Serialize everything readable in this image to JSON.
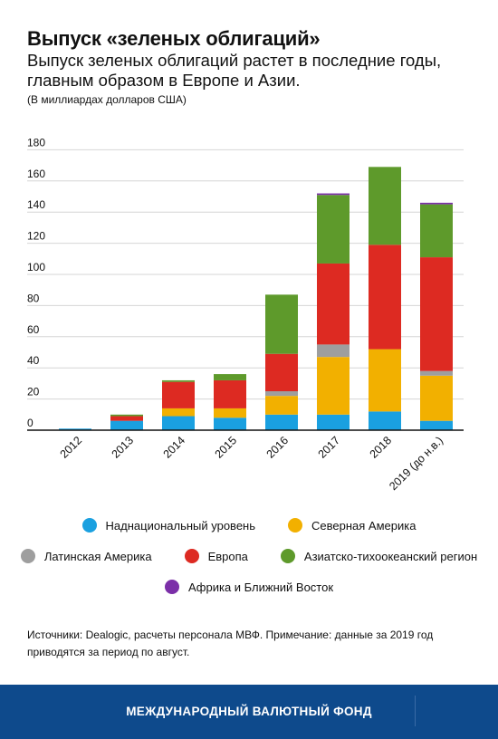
{
  "header": {
    "title": "Выпуск «зеленых облигаций»",
    "subtitle": "Выпуск зеленых облигаций растет в последние годы, главным образом в Европе и Азии.",
    "units": "(В миллиардах долларов США)"
  },
  "chart_data": {
    "type": "bar",
    "stacked": true,
    "title": "Выпуск «зеленых облигаций»",
    "categories": [
      "2012",
      "2013",
      "2014",
      "2015",
      "2016",
      "2017",
      "2018",
      "2019 (до н.в.)"
    ],
    "series": [
      {
        "name": "Наднациональный уровень",
        "color": "#1aa0e0",
        "values": [
          1,
          6,
          9,
          8,
          10,
          10,
          12,
          6
        ]
      },
      {
        "name": "Северная Америка",
        "color": "#f2b000",
        "values": [
          0,
          0,
          5,
          6,
          12,
          37,
          40,
          29
        ]
      },
      {
        "name": "Латинская Америка",
        "color": "#9e9e9e",
        "values": [
          0,
          0,
          0,
          0,
          3,
          8,
          0,
          3
        ]
      },
      {
        "name": "Европа",
        "color": "#dd2a22",
        "values": [
          0,
          3,
          17,
          18,
          24,
          52,
          67,
          73
        ]
      },
      {
        "name": "Азиатско-тихоокеанский регион",
        "color": "#5e9a2b",
        "values": [
          0,
          1,
          1,
          4,
          38,
          44,
          50,
          34
        ]
      },
      {
        "name": "Африка и Ближний Восток",
        "color": "#7b2fa8",
        "values": [
          0,
          0,
          0,
          0,
          0,
          1,
          0,
          1
        ]
      }
    ],
    "ylim": [
      0,
      180
    ],
    "yticks": [
      0,
      20,
      40,
      60,
      80,
      100,
      120,
      140,
      160,
      180
    ],
    "grid": true,
    "legend_position": "bottom"
  },
  "legend": {
    "rows": [
      [
        0,
        1
      ],
      [
        2,
        3,
        4
      ],
      [
        5
      ]
    ]
  },
  "notes": "Источники: Dealogic, расчеты персонала МВФ. Примечание: данные за 2019 год приводятся за период по август.",
  "footer": {
    "label": "МЕЖДУНАРОДНЫЙ ВАЛЮТНЫЙ ФОНД"
  }
}
